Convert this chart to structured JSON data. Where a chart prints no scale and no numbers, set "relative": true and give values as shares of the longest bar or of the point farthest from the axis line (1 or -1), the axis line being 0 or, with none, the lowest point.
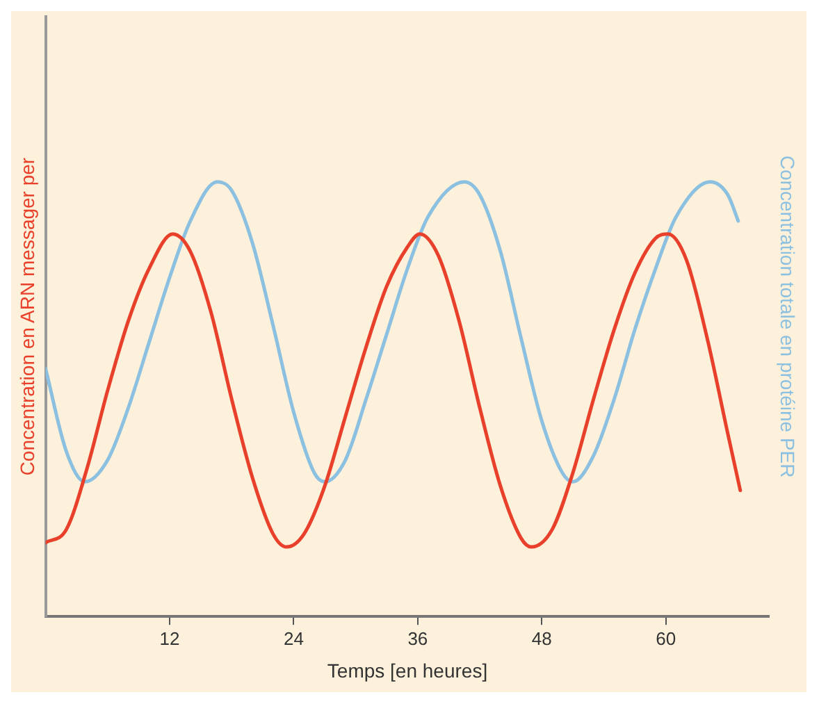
{
  "chart_data": {
    "type": "line",
    "xlabel": "Temps [en heures]",
    "ylabel": "Concentration en ARN messager per",
    "y2label": "Concentration totale en protéine PER",
    "relative": true,
    "xlim": [
      0,
      70
    ],
    "xticks": [
      12,
      24,
      36,
      48,
      60
    ],
    "grid": false,
    "legend": false,
    "marker": "none",
    "line_style": "solid",
    "series": [
      {
        "color": "#e8402a",
        "x": [
          0,
          2,
          4,
          6,
          8,
          10,
          12.3,
          14,
          16,
          18,
          20,
          22,
          23.3,
          25,
          27,
          29,
          31,
          33,
          35,
          36.2,
          38,
          40,
          42,
          44,
          46,
          47,
          49,
          51,
          53,
          55,
          57,
          59,
          60.2,
          62,
          64,
          66,
          67.2
        ],
        "values": [
          0.17,
          0.2,
          0.34,
          0.52,
          0.68,
          0.8,
          0.88,
          0.84,
          0.7,
          0.5,
          0.32,
          0.19,
          0.16,
          0.19,
          0.3,
          0.46,
          0.62,
          0.76,
          0.85,
          0.88,
          0.83,
          0.68,
          0.48,
          0.3,
          0.18,
          0.16,
          0.2,
          0.33,
          0.5,
          0.66,
          0.79,
          0.87,
          0.88,
          0.82,
          0.64,
          0.42,
          0.29
        ]
      },
      {
        "color": "#8cc0e0",
        "x": [
          0,
          2,
          3.8,
          6,
          8,
          10,
          12,
          14,
          16.6,
          18,
          20,
          22,
          24,
          26,
          27,
          29,
          31,
          33,
          35,
          37,
          40.5,
          42,
          44,
          46,
          48,
          50,
          51,
          53,
          55,
          57,
          59,
          61,
          64.3,
          66,
          67
        ],
        "values": [
          0.57,
          0.38,
          0.31,
          0.36,
          0.48,
          0.63,
          0.78,
          0.91,
          1.0,
          0.98,
          0.86,
          0.67,
          0.47,
          0.33,
          0.31,
          0.36,
          0.5,
          0.65,
          0.8,
          0.92,
          1.0,
          0.97,
          0.84,
          0.64,
          0.45,
          0.33,
          0.31,
          0.37,
          0.5,
          0.66,
          0.8,
          0.92,
          1.0,
          0.97,
          0.91
        ]
      }
    ]
  }
}
